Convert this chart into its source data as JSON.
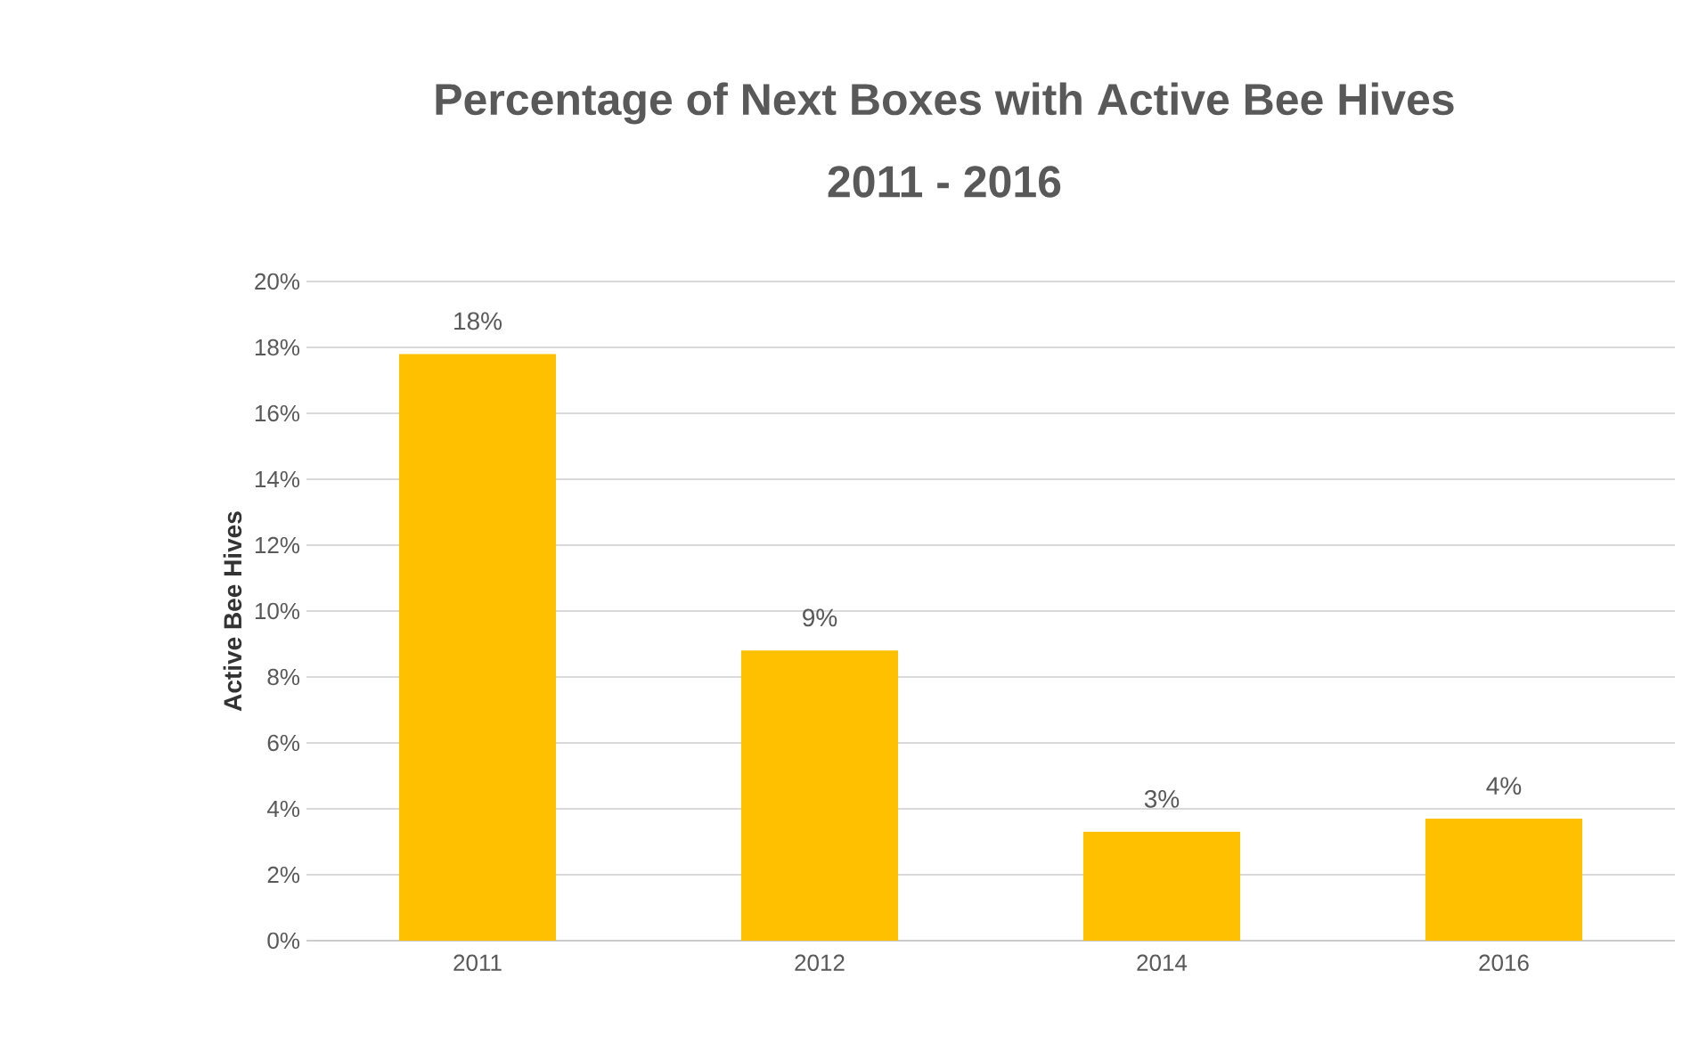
{
  "chart_data": {
    "type": "bar",
    "title": "Percentage of Next Boxes with Active Bee Hives",
    "subtitle": "2011 - 2016",
    "ylabel": "Active Bee Hives",
    "categories": [
      "2011",
      "2012",
      "2014",
      "2016"
    ],
    "values": [
      17.8,
      8.8,
      3.3,
      3.7
    ],
    "value_labels": [
      "18%",
      "9%",
      "3%",
      "4%"
    ],
    "color": "#ffc000",
    "ylim": [
      0,
      20
    ],
    "yticks": [
      {
        "value": 0,
        "label": "0%"
      },
      {
        "value": 2,
        "label": "2%"
      },
      {
        "value": 4,
        "label": "4%"
      },
      {
        "value": 6,
        "label": "6%"
      },
      {
        "value": 8,
        "label": "8%"
      },
      {
        "value": 10,
        "label": "10%"
      },
      {
        "value": 12,
        "label": "12%"
      },
      {
        "value": 14,
        "label": "14%"
      },
      {
        "value": 16,
        "label": "16%"
      },
      {
        "value": 18,
        "label": "18%"
      },
      {
        "value": 20,
        "label": "20%"
      }
    ],
    "grid": "y"
  }
}
